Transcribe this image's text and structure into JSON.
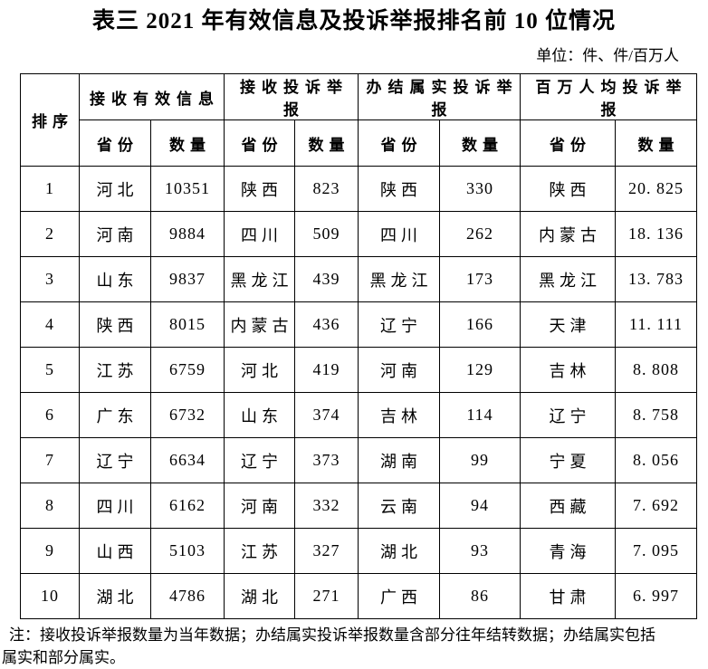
{
  "title": "表三 2021 年有效信息及投诉举报排名前 10 位情况",
  "unit_label": "单位：件、件/百万人",
  "colors": {
    "background": "#ffffff",
    "text": "#000000",
    "border": "#000000"
  },
  "table": {
    "rank_header": "排序",
    "groups": [
      {
        "label": "接收有效信息",
        "province_header": "省份",
        "count_header": "数量"
      },
      {
        "label": "接收投诉举报",
        "province_header": "省份",
        "count_header": "数量"
      },
      {
        "label": "办结属实投诉举报",
        "province_header": "省份",
        "count_header": "数量"
      },
      {
        "label": "百万人均投诉举报",
        "province_header": "省份",
        "count_header": "数量"
      }
    ],
    "rows": [
      {
        "rank": "1",
        "cells": [
          "河北",
          "10351",
          "陕西",
          "823",
          "陕西",
          "330",
          "陕西",
          "20. 825"
        ]
      },
      {
        "rank": "2",
        "cells": [
          "河南",
          "9884",
          "四川",
          "509",
          "四川",
          "262",
          "内蒙古",
          "18. 136"
        ]
      },
      {
        "rank": "3",
        "cells": [
          "山东",
          "9837",
          "黑龙江",
          "439",
          "黑龙江",
          "173",
          "黑龙江",
          "13. 783"
        ]
      },
      {
        "rank": "4",
        "cells": [
          "陕西",
          "8015",
          "内蒙古",
          "436",
          "辽宁",
          "166",
          "天津",
          "11. 111"
        ]
      },
      {
        "rank": "5",
        "cells": [
          "江苏",
          "6759",
          "河北",
          "419",
          "河南",
          "129",
          "吉林",
          "8. 808"
        ]
      },
      {
        "rank": "6",
        "cells": [
          "广东",
          "6732",
          "山东",
          "374",
          "吉林",
          "114",
          "辽宁",
          "8. 758"
        ]
      },
      {
        "rank": "7",
        "cells": [
          "辽宁",
          "6634",
          "辽宁",
          "373",
          "湖南",
          "99",
          "宁夏",
          "8. 056"
        ]
      },
      {
        "rank": "8",
        "cells": [
          "四川",
          "6162",
          "河南",
          "332",
          "云南",
          "94",
          "西藏",
          "7. 692"
        ]
      },
      {
        "rank": "9",
        "cells": [
          "山西",
          "5103",
          "江苏",
          "327",
          "湖北",
          "93",
          "青海",
          "7. 095"
        ]
      },
      {
        "rank": "10",
        "cells": [
          "湖北",
          "4786",
          "湖北",
          "271",
          "广西",
          "86",
          "甘肃",
          "6. 997"
        ]
      }
    ]
  },
  "note": {
    "line1": "注：接收投诉举报数量为当年数据；办结属实投诉举报数量含部分往年结转数据；办结属实包括",
    "line2": "属实和部分属实。"
  }
}
